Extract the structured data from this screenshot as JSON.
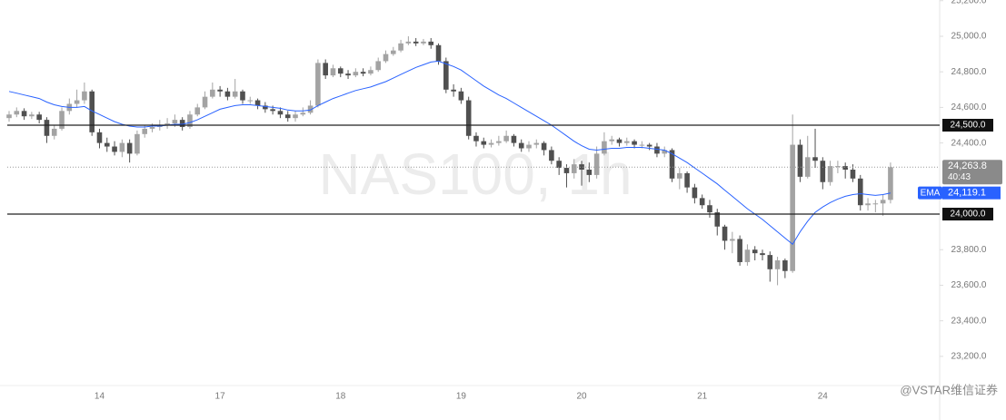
{
  "chart_data": {
    "type": "candlestick",
    "watermark": "NAS100, 1h",
    "credit": "@VSTAR维信证券",
    "categories": [
      null,
      null,
      null,
      null,
      null,
      null,
      null,
      null,
      null,
      null,
      null,
      null,
      "14",
      null,
      null,
      null,
      null,
      null,
      null,
      null,
      null,
      null,
      null,
      null,
      null,
      null,
      null,
      null,
      "17",
      null,
      null,
      null,
      null,
      null,
      null,
      null,
      null,
      null,
      null,
      null,
      null,
      null,
      null,
      null,
      "18",
      null,
      null,
      null,
      null,
      null,
      null,
      null,
      null,
      null,
      null,
      null,
      null,
      null,
      null,
      null,
      "19",
      null,
      null,
      null,
      null,
      null,
      null,
      null,
      null,
      null,
      null,
      null,
      null,
      null,
      null,
      null,
      "20",
      null,
      null,
      null,
      null,
      null,
      null,
      null,
      null,
      null,
      null,
      null,
      null,
      null,
      null,
      null,
      "21",
      null,
      null,
      null,
      null,
      null,
      null,
      null,
      null,
      null,
      null,
      null,
      null,
      null,
      null,
      null,
      "24",
      null,
      null,
      null,
      null,
      null,
      null,
      null,
      null,
      null
    ],
    "open": [
      24540,
      24560,
      24580,
      24550,
      24560,
      24530,
      24440,
      24480,
      24580,
      24620,
      24640,
      24690,
      24460,
      24400,
      24380,
      24350,
      24400,
      24340,
      24450,
      24480,
      24490,
      24500,
      24510,
      24530,
      24490,
      24560,
      24600,
      24660,
      24700,
      24690,
      24660,
      24690,
      24640,
      24640,
      24610,
      24590,
      24580,
      24560,
      24540,
      24560,
      24570,
      24610,
      24850,
      24780,
      24820,
      24790,
      24780,
      24800,
      24790,
      24810,
      24860,
      24900,
      24920,
      24960,
      24970,
      24960,
      24970,
      24950,
      24860,
      24700,
      24690,
      24640,
      24440,
      24410,
      24390,
      24400,
      24410,
      24440,
      24400,
      24370,
      24390,
      24400,
      24360,
      24300,
      24260,
      24230,
      24280,
      24250,
      24220,
      24340,
      24410,
      24420,
      24400,
      24410,
      24390,
      24390,
      24380,
      24340,
      24360,
      24200,
      24230,
      24150,
      24090,
      24050,
      24010,
      23930,
      23850,
      23860,
      23730,
      23800,
      23780,
      23770,
      23690,
      23740,
      23680,
      24390,
      24210,
      24320,
      24300,
      24180,
      24270,
      24270,
      24250,
      24200,
      24050,
      24060,
      24060,
      24080
    ],
    "high": [
      24580,
      24600,
      24595,
      24575,
      24575,
      24545,
      24500,
      24600,
      24650,
      24700,
      24740,
      24700,
      24480,
      24430,
      24410,
      24420,
      24420,
      24470,
      24500,
      24510,
      24530,
      24540,
      24560,
      24545,
      24580,
      24620,
      24690,
      24740,
      24720,
      24710,
      24760,
      24700,
      24660,
      24650,
      24630,
      24610,
      24600,
      24580,
      24580,
      24600,
      24640,
      24870,
      24870,
      24840,
      24830,
      24810,
      24820,
      24820,
      24830,
      24880,
      24920,
      24940,
      24980,
      25000,
      24990,
      24985,
      24990,
      24960,
      24880,
      24730,
      24710,
      24660,
      24460,
      24430,
      24420,
      24440,
      24470,
      24450,
      24420,
      24410,
      24420,
      24410,
      24380,
      24320,
      24280,
      24310,
      24300,
      24290,
      24380,
      24460,
      24440,
      24430,
      24430,
      24420,
      24410,
      24400,
      24400,
      24380,
      24370,
      24260,
      24240,
      24170,
      24110,
      24080,
      24030,
      23940,
      23900,
      23880,
      23830,
      23820,
      23800,
      23790,
      23760,
      23750,
      24560,
      24420,
      24440,
      24480,
      24320,
      24300,
      24300,
      24290,
      24280,
      24220,
      24090,
      24080,
      24110,
      24290
    ],
    "low": [
      24520,
      24545,
      24530,
      24535,
      24510,
      24400,
      24420,
      24470,
      24560,
      24600,
      24620,
      24440,
      24370,
      24350,
      24330,
      24320,
      24290,
      24330,
      24430,
      24460,
      24470,
      24480,
      24490,
      24470,
      24480,
      24550,
      24590,
      24650,
      24660,
      24640,
      24650,
      24620,
      24620,
      24590,
      24570,
      24560,
      24540,
      24520,
      24520,
      24550,
      24560,
      24600,
      24760,
      24770,
      24770,
      24760,
      24770,
      24775,
      24780,
      24800,
      24850,
      24890,
      24910,
      24950,
      24945,
      24950,
      24930,
      24840,
      24680,
      24660,
      24620,
      24420,
      24380,
      24370,
      24375,
      24385,
      24400,
      24380,
      24350,
      24350,
      24370,
      24330,
      24280,
      24220,
      24150,
      24200,
      24160,
      24180,
      24200,
      24330,
      24390,
      24380,
      24385,
      24370,
      24370,
      24360,
      24320,
      24320,
      24180,
      24140,
      24120,
      24060,
      24030,
      23980,
      23880,
      23800,
      23780,
      23710,
      23710,
      23740,
      23740,
      23620,
      23600,
      23640,
      23670,
      24180,
      24200,
      24260,
      24140,
      24160,
      24230,
      24200,
      24180,
      24020,
      24020,
      24010,
      23990,
      24060
    ],
    "close": [
      24560,
      24580,
      24550,
      24560,
      24530,
      24440,
      24480,
      24580,
      24620,
      24640,
      24690,
      24460,
      24400,
      24380,
      24350,
      24400,
      24340,
      24450,
      24480,
      24490,
      24500,
      24510,
      24530,
      24490,
      24560,
      24600,
      24660,
      24700,
      24690,
      24660,
      24690,
      24640,
      24640,
      24610,
      24590,
      24580,
      24560,
      24540,
      24560,
      24570,
      24610,
      24850,
      24780,
      24820,
      24790,
      24780,
      24800,
      24790,
      24810,
      24860,
      24900,
      24920,
      24960,
      24970,
      24960,
      24970,
      24950,
      24860,
      24700,
      24690,
      24640,
      24440,
      24410,
      24390,
      24400,
      24410,
      24440,
      24400,
      24370,
      24390,
      24400,
      24360,
      24300,
      24260,
      24230,
      24280,
      24250,
      24220,
      24340,
      24410,
      24420,
      24400,
      24410,
      24390,
      24390,
      24380,
      24340,
      24360,
      24200,
      24230,
      24150,
      24090,
      24050,
      24010,
      23930,
      23850,
      23860,
      23730,
      23800,
      23780,
      23770,
      23690,
      23740,
      23680,
      24390,
      24210,
      24320,
      24300,
      24180,
      24270,
      24270,
      24250,
      24200,
      24050,
      24060,
      24060,
      24080,
      24263.8
    ],
    "up_color": "#a3a3a3",
    "down_color": "#505050",
    "ema": {
      "name": "EMA",
      "color": "#2962ff",
      "last_value_label": "24,119.1",
      "values": [
        24690,
        24680,
        24670,
        24660,
        24650,
        24630,
        24615,
        24605,
        24600,
        24600,
        24605,
        24580,
        24560,
        24540,
        24520,
        24505,
        24495,
        24490,
        24490,
        24495,
        24495,
        24500,
        24505,
        24505,
        24515,
        24530,
        24550,
        24570,
        24590,
        24600,
        24610,
        24615,
        24615,
        24610,
        24605,
        24600,
        24595,
        24585,
        24580,
        24580,
        24585,
        24610,
        24630,
        24650,
        24665,
        24680,
        24695,
        24705,
        24715,
        24730,
        24745,
        24765,
        24785,
        24805,
        24825,
        24840,
        24855,
        24860,
        24845,
        24830,
        24810,
        24780,
        24750,
        24720,
        24695,
        24670,
        24650,
        24625,
        24600,
        24575,
        24550,
        24525,
        24500,
        24470,
        24440,
        24410,
        24385,
        24365,
        24360,
        24365,
        24370,
        24370,
        24375,
        24375,
        24375,
        24370,
        24365,
        24360,
        24340,
        24315,
        24290,
        24260,
        24230,
        24200,
        24170,
        24135,
        24100,
        24065,
        24030,
        24000,
        23970,
        23935,
        23900,
        23865,
        23830,
        23900,
        23960,
        24010,
        24040,
        24065,
        24085,
        24100,
        24110,
        24115,
        24110,
        24105,
        24110,
        24119.1
      ]
    },
    "last_price_label": "24,263.8",
    "countdown": "40:43",
    "levels": [
      {
        "value": 24500,
        "label": "24,500.0"
      },
      {
        "value": 24000,
        "label": "24,000.0"
      }
    ],
    "ylim": [
      23036,
      25204
    ],
    "yticks": [
      {
        "value": 25200,
        "label": "25,200.0"
      },
      {
        "value": 25000,
        "label": "25,000.0"
      },
      {
        "value": 24800,
        "label": "24,800.0"
      },
      {
        "value": 24600,
        "label": "24,600.0"
      },
      {
        "value": 24400,
        "label": "24,400.0"
      },
      {
        "value": 23800,
        "label": "23,800.0"
      },
      {
        "value": 23600,
        "label": "23,600.0"
      },
      {
        "value": 23400,
        "label": "23,400.0"
      },
      {
        "value": 23200,
        "label": "23,200.0"
      }
    ]
  }
}
